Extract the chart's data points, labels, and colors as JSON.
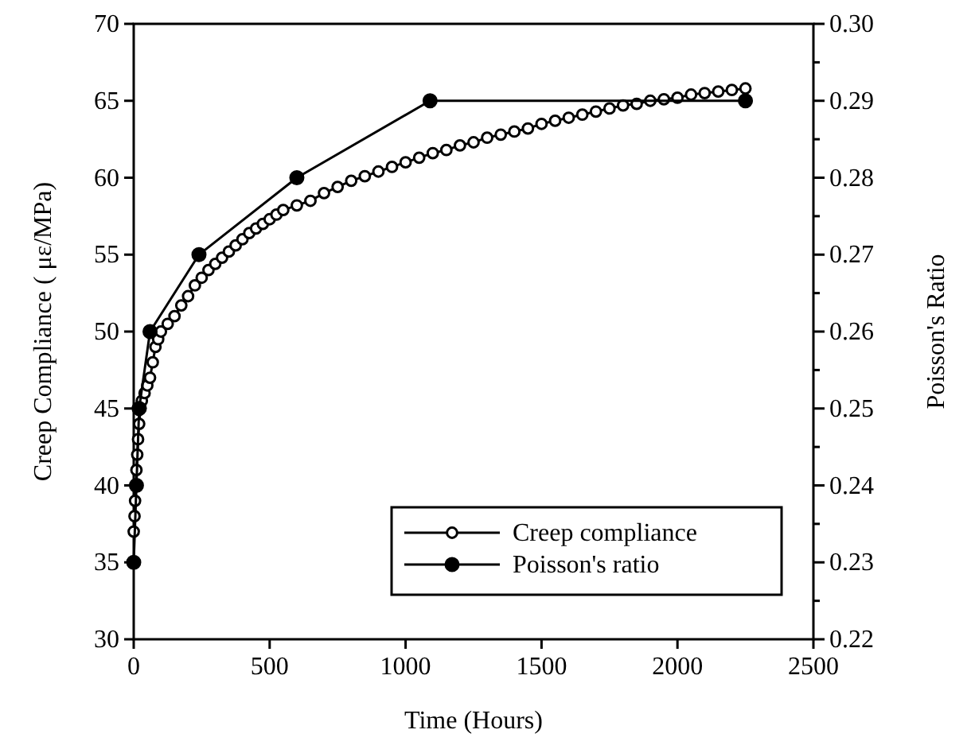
{
  "chart_data": {
    "type": "line",
    "xlabel": "Time (Hours)",
    "ylabel": "Creep Compliance ( με/MPa)",
    "y2label": "Poisson's Ratio",
    "xlim": [
      0,
      2500
    ],
    "xticks": [
      0,
      500,
      1000,
      1500,
      2000,
      2500
    ],
    "ylim": [
      30,
      70
    ],
    "yticks": [
      30,
      35,
      40,
      45,
      50,
      55,
      60,
      65,
      70
    ],
    "y2lim": [
      0.22,
      0.3
    ],
    "y2ticks": [
      0.22,
      {
        "value": 0.225,
        "label": null
      },
      0.23,
      {
        "value": 0.235,
        "label": null
      },
      0.24,
      {
        "value": 0.245,
        "label": null
      },
      0.25,
      {
        "value": 0.255,
        "label": null
      },
      0.26,
      {
        "value": 0.265,
        "label": null
      },
      0.27,
      {
        "value": 0.275,
        "label": null
      },
      0.28,
      {
        "value": 0.285,
        "label": null
      },
      0.29,
      {
        "value": 0.295,
        "label": null
      },
      {
        "value": 0.3,
        "label": "0.30"
      }
    ],
    "legend": "bottom right",
    "grid": false,
    "series": [
      {
        "name": "Creep compliance",
        "color": "#000000",
        "marker": "circle",
        "x": [
          0,
          3,
          5,
          8,
          10,
          13,
          16,
          20,
          25,
          30,
          40,
          50,
          60,
          70,
          80,
          90,
          100,
          125,
          150,
          175,
          200,
          225,
          250,
          275,
          300,
          325,
          350,
          375,
          400,
          425,
          450,
          475,
          500,
          525,
          550,
          600,
          650,
          700,
          750,
          800,
          850,
          900,
          950,
          1000,
          1050,
          1100,
          1150,
          1200,
          1250,
          1300,
          1350,
          1400,
          1450,
          1500,
          1550,
          1600,
          1650,
          1700,
          1750,
          1800,
          1850,
          1900,
          1950,
          2000,
          2050,
          2100,
          2150,
          2200,
          2250
        ],
        "values": [
          37,
          38,
          39,
          40,
          41,
          42,
          43,
          44,
          45,
          45.5,
          46,
          46.5,
          47,
          48,
          49,
          49.5,
          50,
          50.5,
          51,
          51.7,
          52.3,
          53,
          53.5,
          54,
          54.4,
          54.8,
          55.2,
          55.6,
          56,
          56.4,
          56.7,
          57,
          57.3,
          57.6,
          57.9,
          58.2,
          58.5,
          59,
          59.4,
          59.8,
          60.1,
          60.4,
          60.7,
          61,
          61.3,
          61.6,
          61.8,
          62.1,
          62.3,
          62.6,
          62.8,
          63,
          63.2,
          63.5,
          63.7,
          63.9,
          64.1,
          64.3,
          64.5,
          64.7,
          64.8,
          65,
          65.1,
          65.2,
          65.4,
          65.5,
          65.6,
          65.7,
          65.8
        ]
      },
      {
        "name": "Poisson's ratio",
        "color": "#000000",
        "marker": "circle",
        "axis": "y2",
        "x": [
          0,
          10,
          20,
          60,
          240,
          600,
          1090,
          2250
        ],
        "values": [
          0.23,
          0.24,
          0.25,
          0.26,
          0.27,
          0.28,
          0.29,
          0.29
        ]
      }
    ]
  }
}
